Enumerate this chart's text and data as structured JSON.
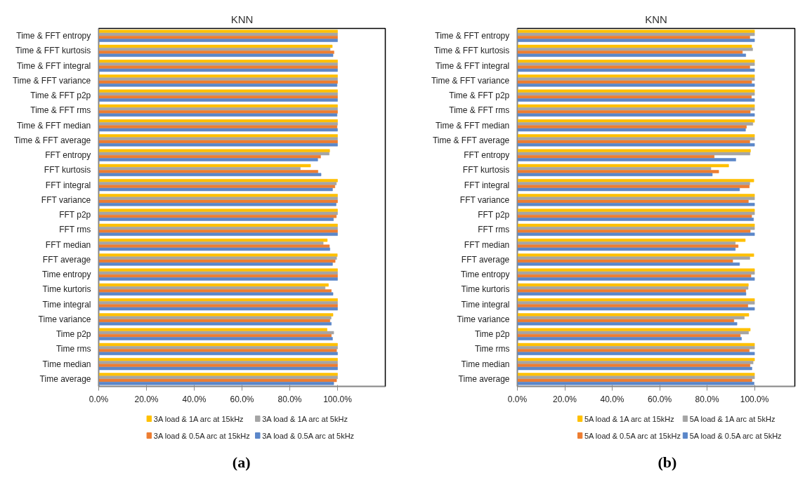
{
  "chart_data": [
    {
      "type": "bar",
      "orientation": "horizontal",
      "title": "KNN",
      "annotations": [
        "(a)"
      ],
      "legend": "bottom",
      "categories": [
        "Time & FFT entropy",
        "Time & FFT kurtosis",
        "Time & FFT integral",
        "Time & FFT variance",
        "Time & FFT p2p",
        "Time & FFT rms",
        "Time & FFT median",
        "Time & FFT average",
        "FFT entropy",
        "FFT kurtosis",
        "FFT integral",
        "FFT variance",
        "FFT p2p",
        "FFT rms",
        "FFT median",
        "FFT average",
        "Time entropy",
        "Time kurtoris",
        "Time integral",
        "Time variance",
        "Time p2p",
        "Time rms",
        "Time median",
        "Time average"
      ],
      "xlim": [
        0,
        120
      ],
      "xticks": [
        {
          "value": 0,
          "label": "0.0%"
        },
        {
          "value": 20,
          "label": "20.0%"
        },
        {
          "value": 40,
          "label": "40.0%"
        },
        {
          "value": 60,
          "label": "60.0%"
        },
        {
          "value": 80,
          "label": "80.0%"
        },
        {
          "value": 100,
          "label": "100.0%"
        }
      ],
      "series": [
        {
          "name": "3A load & 1A arc at 15kHz",
          "color": "#ffc000",
          "values": [
            100,
            97.8,
            100,
            100,
            100,
            100,
            100,
            100,
            96.7,
            88.7,
            100,
            100,
            100,
            100,
            95.7,
            99.9,
            100,
            96.2,
            100,
            98.1,
            95.6,
            100,
            100,
            100
          ]
        },
        {
          "name": "3A load & 1A arc at 5kHz",
          "color": "#a5a5a5",
          "values": [
            100,
            96.9,
            100,
            100,
            100,
            100,
            100,
            100,
            96.5,
            84.4,
            99.5,
            100,
            100,
            100,
            94.0,
            99.6,
            100,
            94.8,
            100,
            97.3,
            98.4,
            100,
            100,
            100
          ]
        },
        {
          "name": "3A load & 0.5A arc at 15kHz",
          "color": "#ed7d31",
          "values": [
            100,
            98.5,
            100,
            100,
            100,
            100,
            99.8,
            100,
            92.9,
            91.8,
            98.9,
            100,
            99.5,
            100,
            96.6,
            99.0,
            100,
            97.4,
            100,
            96.8,
            97.4,
            99.6,
            100,
            99.6
          ]
        },
        {
          "name": "3A load & 0.5A arc at 5kHz",
          "color": "#5b87c9",
          "values": [
            100,
            98.1,
            100,
            99.8,
            100,
            99.8,
            100,
            100,
            91.7,
            93.1,
            97.9,
            99.4,
            98.3,
            100,
            96.8,
            97.9,
            100,
            98.1,
            100,
            97.4,
            97.9,
            100,
            100,
            98.4
          ]
        }
      ]
    },
    {
      "type": "bar",
      "orientation": "horizontal",
      "title": "KNN",
      "annotations": [
        "(b)"
      ],
      "legend": "bottom",
      "categories": [
        "Time & FFT entropy",
        "Time & FFT kurtosis",
        "Time & FFT integral",
        "Time & FFT variance",
        "Time & FFT p2p",
        "Time & FFT rms",
        "Time & FFT median",
        "Time & FFT average",
        "FFT entropy",
        "FFT kurtosis",
        "FFT integral",
        "FFT variance",
        "FFT p2p",
        "FFT rms",
        "FFT median",
        "FFT average",
        "Time entropy",
        "Time kurtoris",
        "Time integral",
        "Time variance",
        "Time p2p",
        "Time rms",
        "Time median",
        "Time average"
      ],
      "xlim": [
        0,
        117
      ],
      "xticks": [
        {
          "value": 0,
          "label": "0.0%"
        },
        {
          "value": 20,
          "label": "20.0%"
        },
        {
          "value": 40,
          "label": "40.0%"
        },
        {
          "value": 60,
          "label": "60.0%"
        },
        {
          "value": 80,
          "label": "80.0%"
        },
        {
          "value": 100,
          "label": "100.0%"
        }
      ],
      "series": [
        {
          "name": "5A load & 1A arc at 15kHz",
          "color": "#ffc000",
          "values": [
            100,
            98.8,
            100,
            100,
            100,
            100,
            100,
            100,
            98.3,
            89.1,
            99.7,
            100,
            100,
            100,
            96.1,
            99.7,
            100,
            97.4,
            100,
            97.6,
            98.2,
            100,
            100,
            100
          ]
        },
        {
          "name": "5A load & 1A arc at 5kHz",
          "color": "#a5a5a5",
          "values": [
            100,
            99.2,
            100,
            100,
            100,
            100,
            99.3,
            100,
            98.1,
            81.6,
            98.0,
            100,
            100,
            100,
            91.9,
            98.0,
            100,
            97.3,
            100,
            95.7,
            97.5,
            100,
            99.4,
            100
          ]
        },
        {
          "name": "5A load & 0.5A arc at 15kHz",
          "color": "#ed7d31",
          "values": [
            98.0,
            94.9,
            98.0,
            98.8,
            98.7,
            98.2,
            96.6,
            98.0,
            83.0,
            84.9,
            97.8,
            97.4,
            98.8,
            98.2,
            93.1,
            90.8,
            98.5,
            96.3,
            97.2,
            91.3,
            94.0,
            97.8,
            98.1,
            98.9
          ]
        },
        {
          "name": "5A load & 0.5A arc at 5kHz",
          "color": "#5b87c9",
          "values": [
            100,
            96.3,
            100,
            100,
            100,
            100,
            96.2,
            100,
            92.1,
            82.2,
            93.7,
            100,
            99.6,
            100,
            91.9,
            93.7,
            100,
            96.4,
            100,
            92.6,
            94.5,
            100,
            98.9,
            99.8
          ]
        }
      ]
    }
  ]
}
